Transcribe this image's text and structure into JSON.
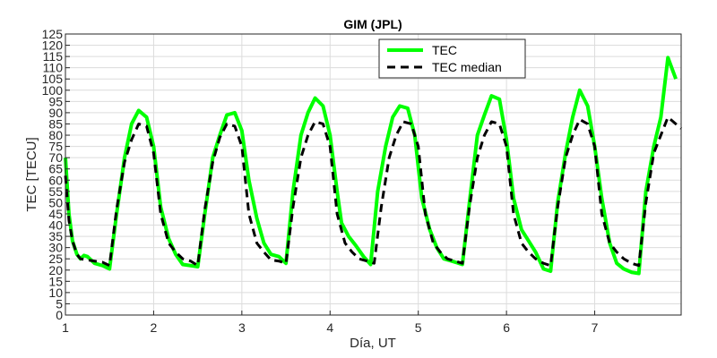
{
  "chart_data": {
    "type": "line",
    "title": "GIM (JPL)",
    "xlabel": "Día, UT",
    "ylabel": "TEC [TECU]",
    "xlim": [
      1,
      7.98
    ],
    "ylim": [
      0,
      125
    ],
    "x_ticks": [
      "1",
      "2",
      "3",
      "4",
      "5",
      "6",
      "7"
    ],
    "y_ticks": [
      "0",
      "5",
      "10",
      "15",
      "20",
      "25",
      "30",
      "35",
      "40",
      "45",
      "50",
      "55",
      "60",
      "65",
      "70",
      "75",
      "80",
      "85",
      "90",
      "95",
      "100",
      "105",
      "110",
      "115",
      "120",
      "125"
    ],
    "grid": true,
    "legend_position": "top-right",
    "series": [
      {
        "name": "TEC",
        "color": "#00ff00",
        "style": "solid",
        "points": [
          [
            1.0,
            70
          ],
          [
            1.04,
            45
          ],
          [
            1.08,
            33
          ],
          [
            1.13,
            27
          ],
          [
            1.17,
            25
          ],
          [
            1.21,
            26.5
          ],
          [
            1.25,
            26
          ],
          [
            1.33,
            23
          ],
          [
            1.42,
            22
          ],
          [
            1.5,
            20.5
          ],
          [
            1.58,
            45
          ],
          [
            1.67,
            70
          ],
          [
            1.75,
            85
          ],
          [
            1.83,
            91
          ],
          [
            1.92,
            88
          ],
          [
            2.0,
            75
          ],
          [
            2.08,
            48
          ],
          [
            2.17,
            34
          ],
          [
            2.25,
            27
          ],
          [
            2.33,
            22.5
          ],
          [
            2.42,
            22
          ],
          [
            2.5,
            21.5
          ],
          [
            2.58,
            45
          ],
          [
            2.67,
            70
          ],
          [
            2.75,
            80
          ],
          [
            2.83,
            89
          ],
          [
            2.92,
            90
          ],
          [
            3.0,
            82
          ],
          [
            3.08,
            60
          ],
          [
            3.17,
            43
          ],
          [
            3.25,
            32
          ],
          [
            3.33,
            27
          ],
          [
            3.42,
            26
          ],
          [
            3.5,
            23
          ],
          [
            3.58,
            55
          ],
          [
            3.67,
            80
          ],
          [
            3.75,
            90
          ],
          [
            3.83,
            96.5
          ],
          [
            3.92,
            93
          ],
          [
            4.0,
            80
          ],
          [
            4.08,
            55
          ],
          [
            4.13,
            41
          ],
          [
            4.21,
            35
          ],
          [
            4.29,
            31
          ],
          [
            4.38,
            26
          ],
          [
            4.46,
            22.5
          ],
          [
            4.54,
            55
          ],
          [
            4.63,
            75
          ],
          [
            4.71,
            88
          ],
          [
            4.79,
            93
          ],
          [
            4.88,
            92
          ],
          [
            4.96,
            80
          ],
          [
            5.04,
            52
          ],
          [
            5.13,
            38
          ],
          [
            5.21,
            30
          ],
          [
            5.29,
            25
          ],
          [
            5.38,
            24
          ],
          [
            5.5,
            22.5
          ],
          [
            5.58,
            50
          ],
          [
            5.67,
            80
          ],
          [
            5.75,
            89
          ],
          [
            5.83,
            97.5
          ],
          [
            5.92,
            96
          ],
          [
            6.0,
            78
          ],
          [
            6.08,
            52
          ],
          [
            6.17,
            38
          ],
          [
            6.25,
            33
          ],
          [
            6.33,
            28
          ],
          [
            6.42,
            20.5
          ],
          [
            6.5,
            19.5
          ],
          [
            6.58,
            50
          ],
          [
            6.67,
            72
          ],
          [
            6.75,
            88
          ],
          [
            6.83,
            100
          ],
          [
            6.92,
            93
          ],
          [
            7.0,
            75
          ],
          [
            7.08,
            52
          ],
          [
            7.17,
            32
          ],
          [
            7.25,
            23
          ],
          [
            7.33,
            20.5
          ],
          [
            7.42,
            19
          ],
          [
            7.5,
            18.5
          ],
          [
            7.58,
            55
          ],
          [
            7.67,
            75
          ],
          [
            7.75,
            88
          ],
          [
            7.83,
            114.5
          ],
          [
            7.92,
            105
          ]
        ]
      },
      {
        "name": "TEC median",
        "color": "#000000",
        "style": "dashed",
        "points": [
          [
            1.0,
            62
          ],
          [
            1.04,
            42
          ],
          [
            1.08,
            33
          ],
          [
            1.13,
            27
          ],
          [
            1.17,
            25
          ],
          [
            1.25,
            24.5
          ],
          [
            1.33,
            24
          ],
          [
            1.42,
            23.5
          ],
          [
            1.5,
            22
          ],
          [
            1.58,
            47
          ],
          [
            1.67,
            68
          ],
          [
            1.75,
            78
          ],
          [
            1.83,
            85
          ],
          [
            1.92,
            84
          ],
          [
            2.0,
            72
          ],
          [
            2.08,
            45
          ],
          [
            2.17,
            32
          ],
          [
            2.25,
            28
          ],
          [
            2.33,
            25
          ],
          [
            2.42,
            24
          ],
          [
            2.5,
            22
          ],
          [
            2.58,
            47
          ],
          [
            2.67,
            68
          ],
          [
            2.75,
            79
          ],
          [
            2.83,
            85
          ],
          [
            2.92,
            84
          ],
          [
            3.0,
            75
          ],
          [
            3.08,
            45
          ],
          [
            3.17,
            32
          ],
          [
            3.25,
            28
          ],
          [
            3.33,
            24.5
          ],
          [
            3.42,
            24
          ],
          [
            3.5,
            23
          ],
          [
            3.58,
            48
          ],
          [
            3.67,
            70
          ],
          [
            3.75,
            80
          ],
          [
            3.83,
            86
          ],
          [
            3.92,
            85
          ],
          [
            4.0,
            75
          ],
          [
            4.08,
            45
          ],
          [
            4.17,
            32
          ],
          [
            4.25,
            28
          ],
          [
            4.33,
            25
          ],
          [
            4.42,
            24
          ],
          [
            4.5,
            23
          ],
          [
            4.58,
            48
          ],
          [
            4.67,
            70
          ],
          [
            4.75,
            80
          ],
          [
            4.83,
            86
          ],
          [
            4.92,
            85
          ],
          [
            5.0,
            75
          ],
          [
            5.08,
            45
          ],
          [
            5.17,
            32
          ],
          [
            5.25,
            28
          ],
          [
            5.33,
            25
          ],
          [
            5.42,
            24
          ],
          [
            5.5,
            23
          ],
          [
            5.58,
            48
          ],
          [
            5.67,
            70
          ],
          [
            5.75,
            80
          ],
          [
            5.83,
            86
          ],
          [
            5.92,
            85
          ],
          [
            6.0,
            75
          ],
          [
            6.08,
            45
          ],
          [
            6.17,
            32
          ],
          [
            6.25,
            28
          ],
          [
            6.33,
            25
          ],
          [
            6.42,
            23
          ],
          [
            6.5,
            22
          ],
          [
            6.58,
            48
          ],
          [
            6.67,
            70
          ],
          [
            6.75,
            80
          ],
          [
            6.83,
            87
          ],
          [
            6.92,
            85
          ],
          [
            7.0,
            75
          ],
          [
            7.08,
            45
          ],
          [
            7.17,
            32
          ],
          [
            7.25,
            28
          ],
          [
            7.33,
            25
          ],
          [
            7.42,
            23
          ],
          [
            7.5,
            22
          ],
          [
            7.58,
            50
          ],
          [
            7.67,
            72
          ],
          [
            7.75,
            80
          ],
          [
            7.83,
            88
          ],
          [
            7.92,
            85
          ],
          [
            7.98,
            83
          ]
        ]
      }
    ]
  }
}
